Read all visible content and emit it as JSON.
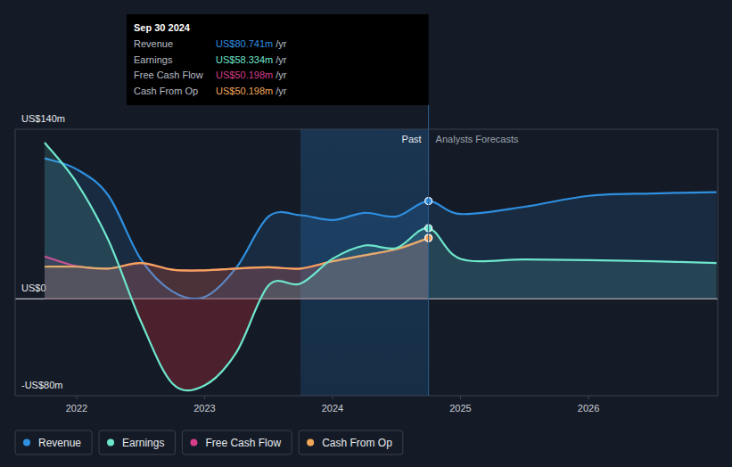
{
  "chart_data": {
    "type": "line",
    "x": [
      2021.75,
      2022.0,
      2022.25,
      2022.5,
      2022.75,
      2023.0,
      2023.25,
      2023.5,
      2023.75,
      2024.0,
      2024.25,
      2024.5,
      2024.75,
      2025.0,
      2025.5,
      2026.0,
      2026.5,
      2027.0
    ],
    "xlim": [
      2021.52,
      2027.01
    ],
    "xticks": [
      2022,
      2023,
      2024,
      2025,
      2026
    ],
    "ylim": [
      -80,
      140
    ],
    "yticks": [
      {
        "value": -80,
        "label": "-US$80m"
      },
      {
        "value": 0,
        "label": "US$0"
      },
      {
        "value": 140,
        "label": "US$140m"
      }
    ],
    "grid": true,
    "series": [
      {
        "name": "Revenue",
        "color": "#2f8fe0",
        "values": [
          116,
          107,
          85,
          33,
          6,
          1.5,
          26,
          68,
          69,
          65,
          71,
          68,
          80.741,
          70,
          76,
          85,
          87,
          88
        ]
      },
      {
        "name": "Earnings",
        "color": "#6ee6cc",
        "values": [
          129,
          96,
          48,
          -18,
          -70,
          -71.5,
          -44,
          11,
          12.5,
          33,
          44,
          42,
          58.334,
          33,
          32.5,
          32,
          31,
          29.5
        ]
      },
      {
        "name": "Free Cash Flow",
        "color": "#d63c8a",
        "values": [
          35,
          27,
          25,
          29.5,
          24,
          23.5,
          25,
          26,
          25,
          31,
          36,
          41,
          50.198,
          null,
          null,
          null,
          null,
          null
        ]
      },
      {
        "name": "Cash From Op",
        "color": "#f2a65a",
        "values": [
          26.5,
          26.5,
          25,
          29.5,
          24,
          23.5,
          25,
          26,
          25,
          31,
          36,
          41,
          50.198,
          null,
          null,
          null,
          null,
          null
        ]
      }
    ],
    "highlight": [
      2023.75,
      2024.75
    ],
    "annotations": [
      {
        "text": "Past",
        "x": 2024.75
      },
      {
        "text": "Analysts Forecasts",
        "x": 2024.75
      }
    ],
    "tooltip": {
      "title": "Sep 30 2024",
      "x": 2024.75,
      "rows": [
        {
          "label": "Revenue",
          "value": "US$80.741m",
          "unit": "/yr"
        },
        {
          "label": "Earnings",
          "value": "US$58.334m",
          "unit": "/yr"
        },
        {
          "label": "Free Cash Flow",
          "value": "US$50.198m",
          "unit": "/yr"
        },
        {
          "label": "Cash From Op",
          "value": "US$50.198m",
          "unit": "/yr"
        }
      ]
    },
    "legend": "bottom-left"
  }
}
